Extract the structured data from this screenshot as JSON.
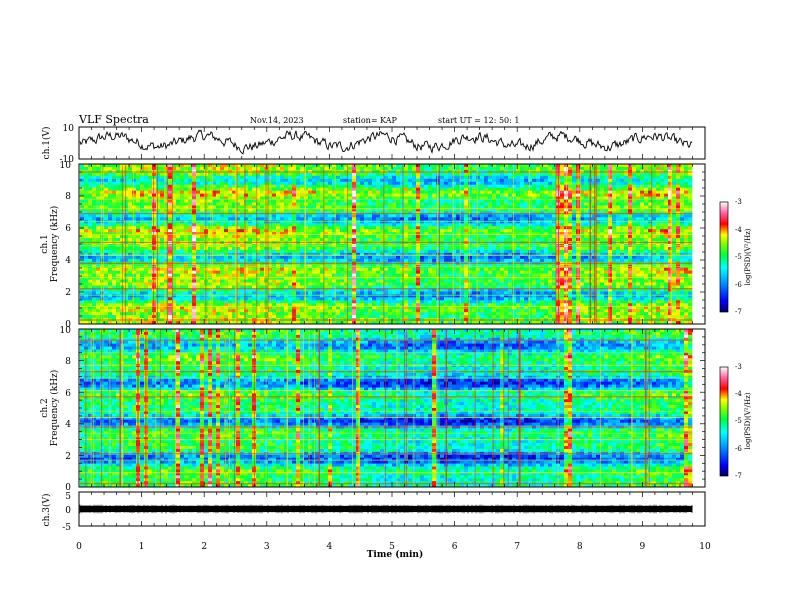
{
  "header": {
    "title": "VLF Spectra",
    "date": "Nov.14, 2023",
    "station": "station= KAP",
    "start_ut": "start  UT =   12: 50: 1"
  },
  "colors": {
    "waveform": "#000000",
    "colormap": [
      "#000080",
      "#0000ff",
      "#00a0ff",
      "#00ffff",
      "#00ff40",
      "#ffff00",
      "#ff0000",
      "#ff60a0",
      "#ffffff"
    ]
  },
  "chart_data": [
    {
      "type": "line",
      "name": "ch1-waveform",
      "ylabel": "ch.1(V)",
      "ylim": [
        -10,
        10
      ],
      "y_ticks": [
        "10",
        "-10"
      ],
      "x_range": [
        0,
        10
      ],
      "data_extent_min": 9.8
    },
    {
      "type": "heatmap",
      "name": "ch1-spectrogram",
      "ylabel": "ch.1\nFrequency (kHz)",
      "ylabel_line1": "ch.1",
      "ylabel_line2": "Frequency (kHz)",
      "ylim": [
        0,
        10
      ],
      "y_ticks": [
        "0",
        "2",
        "4",
        "6",
        "8",
        "10"
      ],
      "x_range": [
        0,
        10
      ],
      "data_extent_min": 9.8,
      "colorbar": {
        "label": "log(PSD)(V²/Hz)",
        "range": [
          -7,
          -3
        ],
        "ticks": [
          "-3",
          "-4",
          "-5",
          "-6",
          "-7"
        ]
      }
    },
    {
      "type": "heatmap",
      "name": "ch2-spectrogram",
      "ylabel": "ch.2\nFrequency (kHz)",
      "ylabel_line1": "ch.2",
      "ylabel_line2": "Frequency (kHz)",
      "ylim": [
        0,
        10
      ],
      "y_ticks": [
        "0",
        "2",
        "4",
        "6",
        "8",
        "10"
      ],
      "x_range": [
        0,
        10
      ],
      "data_extent_min": 9.8,
      "colorbar": {
        "label": "log(PSD)(V²/Hz)",
        "range": [
          -7,
          -3
        ],
        "ticks": [
          "-3",
          "-4",
          "-5",
          "-6",
          "-7"
        ]
      }
    },
    {
      "type": "line",
      "name": "ch3-waveform",
      "ylabel": "ch.3(V)",
      "ylim": [
        -5,
        5
      ],
      "y_ticks": [
        "5",
        "0",
        "-5"
      ],
      "x_range": [
        0,
        10
      ],
      "data_extent_min": 9.8
    }
  ],
  "x_axis": {
    "label": "Time  (min)",
    "ticks": [
      "0",
      "1",
      "2",
      "3",
      "4",
      "5",
      "6",
      "7",
      "8",
      "9",
      "10"
    ]
  }
}
